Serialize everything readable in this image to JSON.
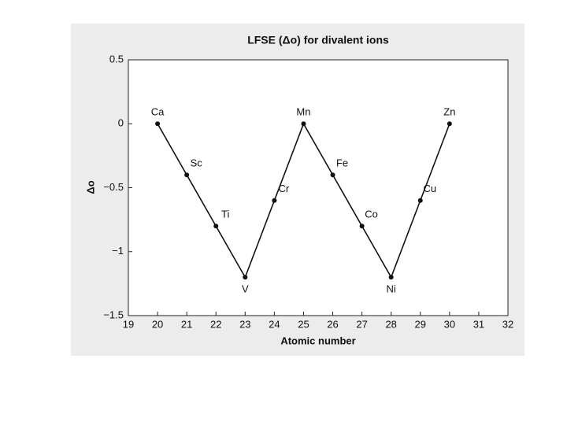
{
  "chart_data": {
    "type": "line",
    "title": "LFSE (Δo) for divalent ions",
    "x_label": "Atomic number",
    "y_label": "Δo",
    "x": [
      20,
      21,
      22,
      23,
      24,
      25,
      26,
      27,
      28,
      29,
      30
    ],
    "series": [
      {
        "color": "#111111",
        "values": [
          0,
          -0.4,
          -0.8,
          -1.2,
          -0.6,
          0,
          -0.4,
          -0.8,
          -1.2,
          -0.6,
          0
        ],
        "point_labels": [
          "Ca",
          "Sc",
          "Ti",
          "V",
          "Cr",
          "Mn",
          "Fe",
          "Co",
          "Ni",
          "Cu",
          "Zn"
        ]
      }
    ],
    "xlim": [
      19,
      32
    ],
    "xticks": [
      19,
      20,
      21,
      22,
      23,
      24,
      25,
      26,
      27,
      28,
      29,
      30,
      31,
      32
    ],
    "ylim": [
      -1.5,
      0.5
    ],
    "yticks": [
      {
        "value": -1.5,
        "label": "−1.5"
      },
      {
        "value": -1,
        "label": "−1"
      },
      {
        "value": -0.5,
        "label": "−0.5"
      },
      0,
      0.5
    ],
    "grid": false
  }
}
